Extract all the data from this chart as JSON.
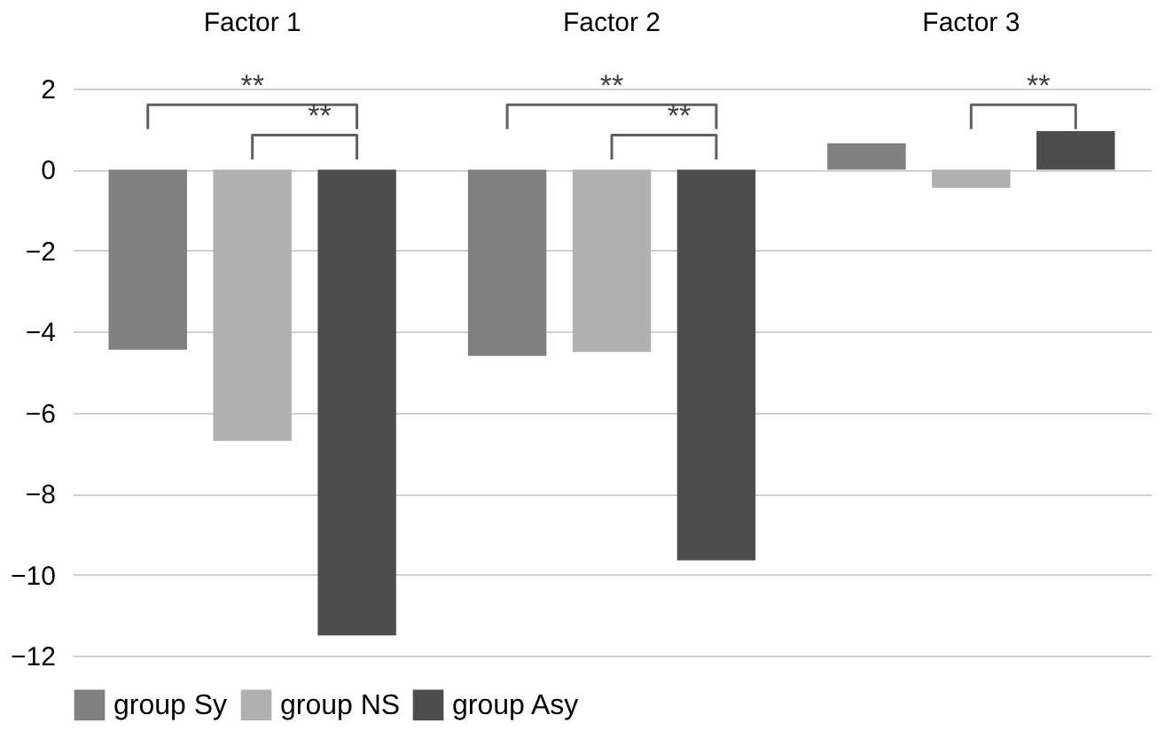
{
  "chart_data": {
    "type": "bar",
    "categories": [
      "Factor 1",
      "Factor 2",
      "Factor 3"
    ],
    "series": [
      {
        "name": "group Sy",
        "color": "#808080",
        "values": [
          -4.45,
          -4.6,
          0.65
        ]
      },
      {
        "name": "group NS",
        "color": "#b0b0b0",
        "values": [
          -6.7,
          -4.5,
          -0.45
        ]
      },
      {
        "name": "group Asy",
        "color": "#4d4d4d",
        "values": [
          -11.5,
          -9.65,
          0.95
        ]
      }
    ],
    "ylim": [
      -12,
      2
    ],
    "yticks": [
      -12,
      -10,
      -8,
      -6,
      -4,
      -2,
      0,
      2
    ],
    "grid": "y",
    "legend": "bottom",
    "annotations": [
      "**",
      "**",
      "**",
      "**",
      "**"
    ]
  }
}
